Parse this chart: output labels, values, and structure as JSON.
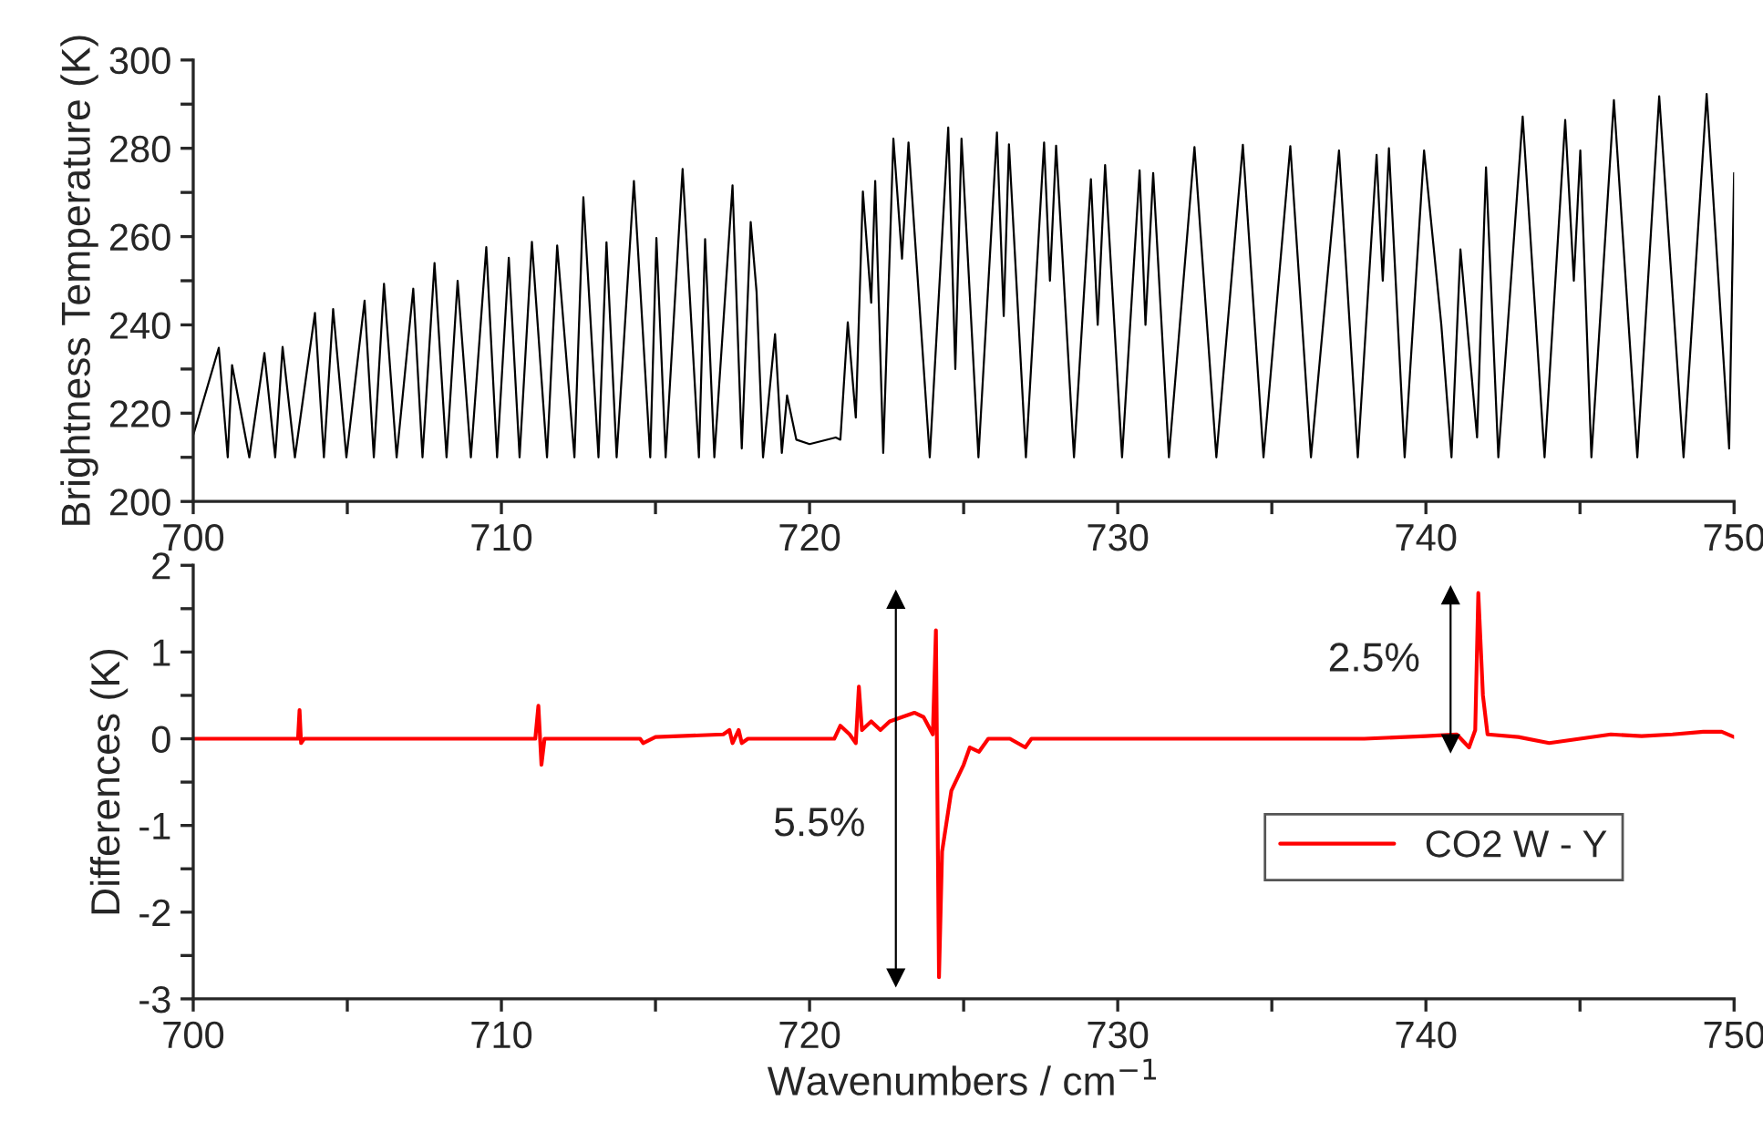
{
  "chart_data": [
    {
      "type": "line",
      "ylabel": "Brightness Temperature (K)",
      "xlim": [
        700,
        750
      ],
      "ylim": [
        200,
        300
      ],
      "xticks": [
        700,
        {
          "value": 705,
          "label": null
        },
        710,
        {
          "value": 715,
          "label": null
        },
        720,
        {
          "value": 725,
          "label": null
        },
        730,
        {
          "value": 735,
          "label": null
        },
        740,
        {
          "value": 745,
          "label": null
        },
        750
      ],
      "yticks": [
        200,
        {
          "value": 210,
          "label": null
        },
        220,
        {
          "value": 230,
          "label": null
        },
        240,
        {
          "value": 250,
          "label": null
        },
        260,
        {
          "value": 270,
          "label": null
        },
        280,
        {
          "value": 290,
          "label": null
        },
        300
      ],
      "grid": false,
      "legend": false,
      "series": [
        {
          "color": "#000000",
          "x": [
            700.0,
            700.83,
            701.12,
            701.26,
            701.82,
            702.31,
            702.66,
            702.9,
            703.3,
            703.95,
            704.24,
            704.54,
            704.97,
            705.56,
            705.86,
            706.19,
            706.6,
            707.14,
            707.44,
            707.83,
            708.22,
            708.58,
            709.01,
            709.51,
            709.86,
            710.24,
            710.59,
            710.99,
            711.48,
            711.81,
            712.37,
            712.66,
            713.15,
            713.41,
            713.74,
            714.3,
            714.83,
            715.03,
            715.33,
            715.88,
            716.41,
            716.61,
            716.91,
            717.5,
            717.8,
            718.09,
            718.28,
            718.49,
            718.88,
            719.1,
            719.27,
            719.57,
            720.0,
            720.85,
            721.0,
            721.24,
            721.5,
            721.73,
            722.0,
            722.13,
            722.39,
            722.72,
            723.0,
            723.21,
            723.9,
            724.5,
            724.73,
            724.93,
            725.48,
            726.08,
            726.3,
            726.47,
            727.02,
            727.61,
            727.8,
            728.0,
            728.58,
            729.13,
            729.35,
            729.59,
            730.14,
            730.71,
            730.9,
            731.15,
            731.66,
            732.49,
            733.2,
            734.06,
            734.73,
            735.6,
            736.27,
            737.18,
            737.79,
            738.4,
            738.6,
            738.8,
            739.31,
            739.94,
            740.5,
            740.83,
            741.12,
            741.66,
            741.95,
            742.35,
            743.14,
            743.85,
            744.52,
            744.8,
            745.01,
            745.37,
            746.1,
            746.86,
            747.57,
            748.36,
            749.11,
            749.84,
            750.0
          ],
          "values": [
            215,
            234.8,
            210,
            230.9,
            210,
            233.6,
            210,
            235,
            210,
            242.7,
            210,
            243.6,
            210,
            245.5,
            210,
            249.3,
            210,
            248.2,
            210,
            254,
            210,
            250,
            210,
            257.6,
            210,
            255.2,
            210,
            258.8,
            210,
            258,
            210,
            268.9,
            210,
            258.7,
            210,
            272.6,
            210,
            259.7,
            210,
            275.3,
            210,
            259.4,
            210,
            271.6,
            212,
            263.3,
            247.5,
            210,
            237.9,
            211,
            224,
            214,
            213,
            214.5,
            214,
            240.6,
            219,
            270.2,
            245,
            272.6,
            211,
            282.2,
            255,
            281.3,
            210,
            284.7,
            230,
            282.2,
            210,
            283.6,
            242,
            280.9,
            210,
            281.3,
            250,
            280.6,
            210,
            273,
            240,
            276.2,
            210,
            275,
            240,
            274.4,
            210,
            280.3,
            210,
            280.8,
            210,
            280.5,
            210,
            279.5,
            210,
            278.5,
            250,
            280,
            210,
            279.5,
            240,
            210,
            257.1,
            214.5,
            275.7,
            210,
            287.2,
            210,
            286.4,
            250,
            279.5,
            210,
            290.9,
            210,
            291.8,
            210,
            292.3,
            212,
            274.4
          ]
        }
      ]
    },
    {
      "type": "line",
      "xlabel": "Wavenumbers / cm$^{−1}$",
      "ylabel": "Differences (K)",
      "xlim": [
        700,
        750
      ],
      "ylim": [
        -3,
        2
      ],
      "xticks": [
        700,
        {
          "value": 705,
          "label": null
        },
        710,
        {
          "value": 715,
          "label": null
        },
        720,
        {
          "value": 725,
          "label": null
        },
        730,
        {
          "value": 735,
          "label": null
        },
        740,
        {
          "value": 745,
          "label": null
        },
        750
      ],
      "yticks": [
        {
          "value": -3,
          "label": "-3"
        },
        {
          "value": -2.5,
          "label": null
        },
        {
          "value": -2,
          "label": "-2"
        },
        {
          "value": -1.5,
          "label": null
        },
        {
          "value": -1,
          "label": "-1"
        },
        {
          "value": -0.5,
          "label": null
        },
        0,
        {
          "value": 0.5,
          "label": null
        },
        1,
        {
          "value": 1.5,
          "label": null
        },
        2
      ],
      "grid": false,
      "legend": "right",
      "annotations": [
        "5.5%",
        "2.5%"
      ],
      "series": [
        {
          "name": "CO2 W - Y",
          "color": "#ff0000",
          "x": [
            700,
            703.4,
            703.45,
            703.5,
            703.6,
            711.1,
            711.2,
            711.3,
            711.4,
            714.5,
            714.6,
            715,
            717.2,
            717.4,
            717.5,
            717.7,
            717.8,
            718,
            720.8,
            721.0,
            721.3,
            721.5,
            721.6,
            721.7,
            722.0,
            722.3,
            722.6,
            723.0,
            723.4,
            723.7,
            724.0,
            724.1,
            724.2,
            724.3,
            724.6,
            725.0,
            725.2,
            725.5,
            725.8,
            726.5,
            727,
            727.2,
            732,
            735,
            738,
            740,
            741,
            741.4,
            741.6,
            741.7,
            741.85,
            742.0,
            743,
            744,
            745,
            746,
            747,
            748,
            749,
            749.6,
            750
          ],
          "values": [
            0,
            0,
            0.33,
            -0.05,
            0,
            0,
            0.38,
            -0.3,
            0,
            0,
            -0.05,
            0.02,
            0.05,
            0.1,
            -0.05,
            0.1,
            -0.05,
            0,
            0,
            0.15,
            0.05,
            -0.05,
            0.6,
            0.1,
            0.2,
            0.1,
            0.2,
            0.25,
            0.3,
            0.25,
            0.05,
            1.25,
            -2.75,
            -1.3,
            -0.6,
            -0.3,
            -0.1,
            -0.15,
            0,
            0,
            -0.1,
            0,
            0,
            0,
            0,
            0.03,
            0.05,
            -0.1,
            0.1,
            1.68,
            0.5,
            0.05,
            0.02,
            -0.05,
            0,
            0.05,
            0.03,
            0.05,
            0.08,
            0.08,
            0.02
          ]
        },
        {
          "type": "line",
          "color": "#000000",
          "marker": "triangle",
          "x": [
            722.8,
            722.8
          ],
          "values": [
            -2.75,
            1.6
          ]
        },
        {
          "type": "line",
          "color": "#000000",
          "marker": "triangle",
          "x": [
            740.8,
            740.8
          ],
          "values": [
            -0.05,
            1.65
          ]
        }
      ]
    }
  ]
}
